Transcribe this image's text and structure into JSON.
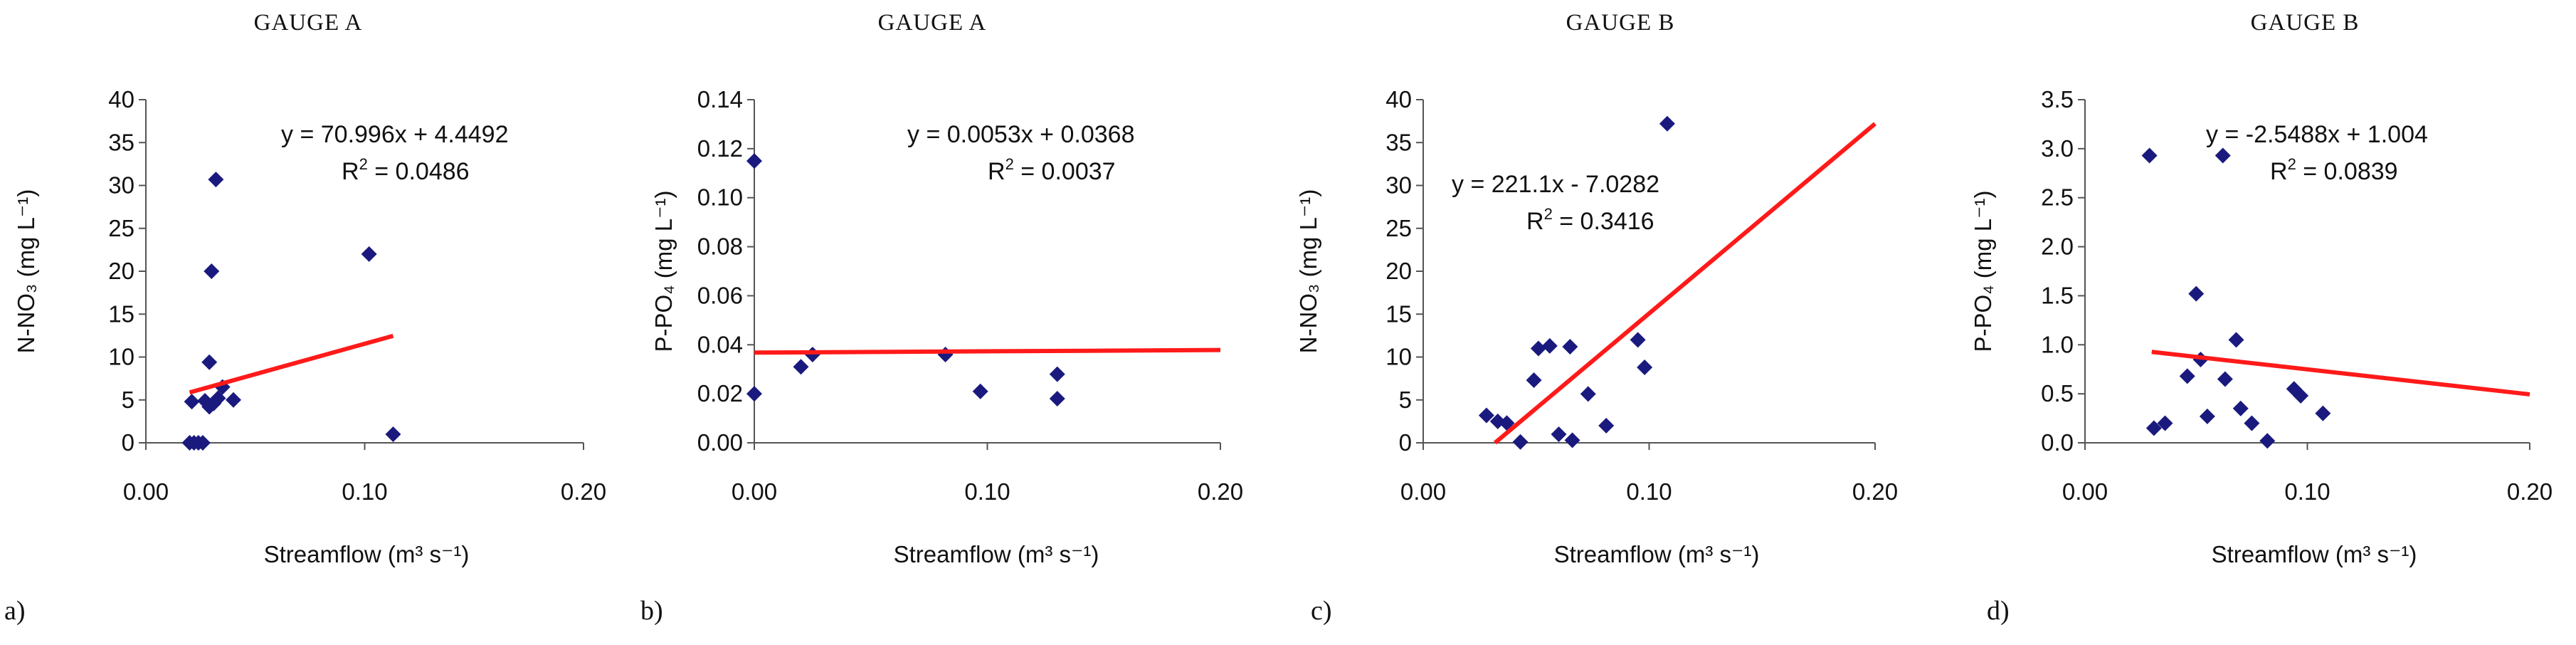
{
  "chart_data": [
    {
      "type": "scatter",
      "panel_label": "a)",
      "title": "GAUGE A",
      "xlabel": "Streamflow (m³ s⁻¹)",
      "ylabel": "N-NO₃ (mg L⁻¹)",
      "xlim": [
        0,
        0.2
      ],
      "ylim": [
        0,
        40
      ],
      "xticks": [
        "0.00",
        "0.10",
        "0.20"
      ],
      "xtick_values": [
        0,
        0.1,
        0.2
      ],
      "yticks": [
        "0",
        "5",
        "10",
        "15",
        "20",
        "25",
        "30",
        "35",
        "40"
      ],
      "ytick_values": [
        0,
        5,
        10,
        15,
        20,
        25,
        30,
        35,
        40
      ],
      "points": [
        [
          0.02,
          0
        ],
        [
          0.022,
          0
        ],
        [
          0.024,
          0
        ],
        [
          0.026,
          0
        ],
        [
          0.021,
          4.8
        ],
        [
          0.027,
          4.9
        ],
        [
          0.029,
          4.2
        ],
        [
          0.031,
          4.6
        ],
        [
          0.033,
          5.2
        ],
        [
          0.035,
          6.5
        ],
        [
          0.04,
          5.0
        ],
        [
          0.029,
          9.4
        ],
        [
          0.03,
          20.0
        ],
        [
          0.032,
          30.7
        ],
        [
          0.102,
          22.0
        ],
        [
          0.113,
          1.0
        ]
      ],
      "trendline": {
        "slope": 70.996,
        "intercept": 4.4492,
        "x_start": 0.02,
        "x_end": 0.113
      },
      "equation": "y = 70.996x + 4.4492",
      "r2_label": "R",
      "r2_sup": "2",
      "r2_value": " = 0.0486",
      "marker_color": "#1a1a7e",
      "line_color": "#ff1a1a"
    },
    {
      "type": "scatter",
      "panel_label": "b)",
      "title": "GAUGE A",
      "xlabel": "Streamflow (m³ s⁻¹)",
      "ylabel": "P-PO₄ (mg L⁻¹)",
      "xlim": [
        0,
        0.2
      ],
      "ylim": [
        0,
        0.14
      ],
      "xticks": [
        "0.00",
        "0.10",
        "0.20"
      ],
      "xtick_values": [
        0,
        0.1,
        0.2
      ],
      "yticks": [
        "0.00",
        "0.02",
        "0.04",
        "0.06",
        "0.08",
        "0.10",
        "0.12",
        "0.14"
      ],
      "ytick_values": [
        0,
        0.02,
        0.04,
        0.06,
        0.08,
        0.1,
        0.12,
        0.14
      ],
      "points": [
        [
          0.0,
          0.115
        ],
        [
          0.0,
          0.02
        ],
        [
          0.02,
          0.031
        ],
        [
          0.025,
          0.036
        ],
        [
          0.082,
          0.036
        ],
        [
          0.097,
          0.021
        ],
        [
          0.13,
          0.028
        ],
        [
          0.13,
          0.018
        ]
      ],
      "trendline": {
        "slope": 0.0053,
        "intercept": 0.0368,
        "x_start": 0.0,
        "x_end": 0.2
      },
      "equation": "y = 0.0053x + 0.0368",
      "r2_label": "R",
      "r2_sup": "2",
      "r2_value": " = 0.0037",
      "marker_color": "#1a1a7e",
      "line_color": "#ff1a1a"
    },
    {
      "type": "scatter",
      "panel_label": "c)",
      "title": "GAUGE B",
      "xlabel": "Streamflow (m³ s⁻¹)",
      "ylabel": "N-NO₃ (mg L⁻¹)",
      "xlim": [
        0,
        0.2
      ],
      "ylim": [
        0,
        40
      ],
      "xticks": [
        "0.00",
        "0.10",
        "0.20"
      ],
      "xtick_values": [
        0,
        0.1,
        0.2
      ],
      "yticks": [
        "0",
        "5",
        "10",
        "15",
        "20",
        "25",
        "30",
        "35",
        "40"
      ],
      "ytick_values": [
        0,
        5,
        10,
        15,
        20,
        25,
        30,
        35,
        40
      ],
      "points": [
        [
          0.028,
          3.2
        ],
        [
          0.033,
          2.5
        ],
        [
          0.037,
          2.3
        ],
        [
          0.043,
          0.1
        ],
        [
          0.049,
          7.3
        ],
        [
          0.051,
          11.0
        ],
        [
          0.056,
          11.3
        ],
        [
          0.06,
          1.0
        ],
        [
          0.065,
          11.2
        ],
        [
          0.066,
          0.3
        ],
        [
          0.073,
          5.7
        ],
        [
          0.081,
          2.0
        ],
        [
          0.095,
          12.0
        ],
        [
          0.098,
          8.8
        ],
        [
          0.108,
          37.2
        ]
      ],
      "trendline": {
        "slope": 221.1,
        "intercept": -7.0282,
        "x_start": 0.0318,
        "x_end": 0.2
      },
      "equation": "y = 221.1x - 7.0282",
      "r2_label": "R",
      "r2_sup": "2",
      "r2_value": " = 0.3416",
      "marker_color": "#1a1a7e",
      "line_color": "#ff1a1a"
    },
    {
      "type": "scatter",
      "panel_label": "d)",
      "title": "GAUGE B",
      "xlabel": "Streamflow (m³ s⁻¹)",
      "ylabel": "P-PO₄ (mg L⁻¹)",
      "xlim": [
        0,
        0.2
      ],
      "ylim": [
        0,
        3.5
      ],
      "xticks": [
        "0.00",
        "0.10",
        "0.20"
      ],
      "xtick_values": [
        0,
        0.1,
        0.2
      ],
      "yticks": [
        "0.0",
        "0.5",
        "1.0",
        "1.5",
        "2.0",
        "2.5",
        "3.0",
        "3.5"
      ],
      "ytick_values": [
        0,
        0.5,
        1.0,
        1.5,
        2.0,
        2.5,
        3.0,
        3.5
      ],
      "points": [
        [
          0.029,
          2.93
        ],
        [
          0.031,
          0.15
        ],
        [
          0.036,
          0.2
        ],
        [
          0.046,
          0.68
        ],
        [
          0.05,
          1.52
        ],
        [
          0.052,
          0.85
        ],
        [
          0.055,
          0.27
        ],
        [
          0.062,
          2.93
        ],
        [
          0.063,
          0.65
        ],
        [
          0.068,
          1.05
        ],
        [
          0.07,
          0.35
        ],
        [
          0.075,
          0.2
        ],
        [
          0.082,
          0.02
        ],
        [
          0.094,
          0.55
        ],
        [
          0.097,
          0.48
        ],
        [
          0.107,
          0.3
        ]
      ],
      "trendline": {
        "slope": -2.5488,
        "intercept": 1.004,
        "x_start": 0.03,
        "x_end": 0.2
      },
      "equation": "y = -2.5488x + 1.004",
      "r2_label": "R",
      "r2_sup": "2",
      "r2_value": " = 0.0839",
      "marker_color": "#1a1a7e",
      "line_color": "#ff1a1a"
    }
  ]
}
